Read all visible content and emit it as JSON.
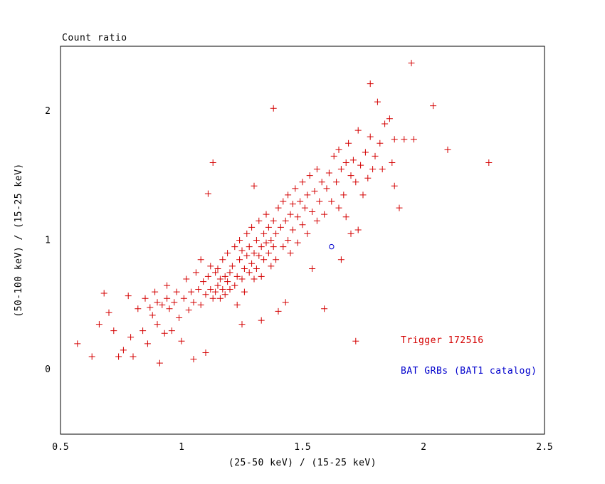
{
  "page": {
    "title": "Count ratio"
  },
  "chart_data": {
    "type": "scatter",
    "title": "Count ratio",
    "xlabel": "(25-50 keV) / (15-25 keV)",
    "ylabel": "(50-100 keV) / (15-25 keV)",
    "xlim": [
      0.5,
      2.5
    ],
    "ylim": [
      -0.5,
      2.5
    ],
    "grid": false,
    "x_ticks": {
      "values": [
        0.5,
        1.0,
        1.5,
        2.0,
        2.5
      ],
      "labels": [
        "0.5",
        "1",
        "1.5",
        "2",
        "2.5"
      ]
    },
    "y_ticks": {
      "values": [
        0,
        1,
        2
      ],
      "labels": [
        "0",
        "1",
        "2"
      ]
    },
    "minor_tick_step": 0.1,
    "legend": [
      {
        "label": "Trigger 172516",
        "color": "#d40000"
      },
      {
        "label": "BAT GRBs (BAT1 catalog)",
        "color": "#0000cd"
      }
    ],
    "series": [
      {
        "name": "Trigger 172516",
        "marker": "plus",
        "color": "#d40000",
        "points": [
          [
            0.57,
            0.2
          ],
          [
            0.63,
            0.1
          ],
          [
            0.66,
            0.35
          ],
          [
            0.68,
            0.59
          ],
          [
            0.7,
            0.44
          ],
          [
            0.72,
            0.3
          ],
          [
            0.74,
            0.1
          ],
          [
            0.76,
            0.15
          ],
          [
            0.78,
            0.57
          ],
          [
            0.79,
            0.25
          ],
          [
            0.8,
            0.1
          ],
          [
            0.82,
            0.47
          ],
          [
            0.84,
            0.3
          ],
          [
            0.85,
            0.55
          ],
          [
            0.86,
            0.2
          ],
          [
            0.87,
            0.48
          ],
          [
            0.88,
            0.42
          ],
          [
            0.89,
            0.6
          ],
          [
            0.9,
            0.35
          ],
          [
            0.9,
            0.52
          ],
          [
            0.91,
            0.05
          ],
          [
            0.92,
            0.5
          ],
          [
            0.93,
            0.28
          ],
          [
            0.94,
            0.55
          ],
          [
            0.94,
            0.65
          ],
          [
            0.95,
            0.47
          ],
          [
            0.96,
            0.3
          ],
          [
            0.97,
            0.52
          ],
          [
            0.98,
            0.6
          ],
          [
            0.99,
            0.4
          ],
          [
            1.0,
            0.22
          ],
          [
            1.01,
            0.55
          ],
          [
            1.02,
            0.7
          ],
          [
            1.03,
            0.46
          ],
          [
            1.04,
            0.6
          ],
          [
            1.05,
            0.08
          ],
          [
            1.05,
            0.52
          ],
          [
            1.06,
            0.75
          ],
          [
            1.07,
            0.62
          ],
          [
            1.08,
            0.5
          ],
          [
            1.08,
            0.85
          ],
          [
            1.09,
            0.68
          ],
          [
            1.1,
            0.13
          ],
          [
            1.1,
            0.58
          ],
          [
            1.11,
            0.72
          ],
          [
            1.11,
            1.36
          ],
          [
            1.12,
            0.62
          ],
          [
            1.12,
            0.8
          ],
          [
            1.13,
            0.55
          ],
          [
            1.13,
            1.6
          ],
          [
            1.14,
            0.75
          ],
          [
            1.14,
            0.6
          ],
          [
            1.15,
            0.65
          ],
          [
            1.15,
            0.78
          ],
          [
            1.16,
            0.7
          ],
          [
            1.16,
            0.55
          ],
          [
            1.17,
            0.62
          ],
          [
            1.17,
            0.85
          ],
          [
            1.18,
            0.72
          ],
          [
            1.18,
            0.58
          ],
          [
            1.19,
            0.68
          ],
          [
            1.19,
            0.9
          ],
          [
            1.2,
            0.75
          ],
          [
            1.2,
            0.62
          ],
          [
            1.21,
            0.8
          ],
          [
            1.22,
            0.65
          ],
          [
            1.22,
            0.95
          ],
          [
            1.23,
            0.72
          ],
          [
            1.23,
            0.5
          ],
          [
            1.24,
            0.85
          ],
          [
            1.24,
            1.0
          ],
          [
            1.25,
            0.35
          ],
          [
            1.25,
            0.7
          ],
          [
            1.25,
            0.92
          ],
          [
            1.26,
            0.78
          ],
          [
            1.26,
            0.6
          ],
          [
            1.27,
            0.88
          ],
          [
            1.27,
            1.05
          ],
          [
            1.28,
            0.75
          ],
          [
            1.28,
            0.95
          ],
          [
            1.29,
            0.82
          ],
          [
            1.29,
            1.1
          ],
          [
            1.3,
            0.7
          ],
          [
            1.3,
            0.9
          ],
          [
            1.3,
            1.42
          ],
          [
            1.31,
            1.0
          ],
          [
            1.31,
            0.78
          ],
          [
            1.32,
            0.88
          ],
          [
            1.32,
            1.15
          ],
          [
            1.33,
            0.38
          ],
          [
            1.33,
            0.95
          ],
          [
            1.33,
            0.72
          ],
          [
            1.34,
            1.05
          ],
          [
            1.34,
            0.85
          ],
          [
            1.35,
            0.98
          ],
          [
            1.35,
            1.2
          ],
          [
            1.36,
            0.9
          ],
          [
            1.36,
            1.1
          ],
          [
            1.37,
            0.8
          ],
          [
            1.37,
            1.0
          ],
          [
            1.38,
            1.15
          ],
          [
            1.38,
            0.95
          ],
          [
            1.38,
            2.02
          ],
          [
            1.39,
            1.05
          ],
          [
            1.39,
            0.85
          ],
          [
            1.4,
            0.45
          ],
          [
            1.4,
            1.25
          ],
          [
            1.41,
            1.1
          ],
          [
            1.42,
            0.95
          ],
          [
            1.42,
            1.3
          ],
          [
            1.43,
            0.52
          ],
          [
            1.43,
            1.15
          ],
          [
            1.44,
            1.0
          ],
          [
            1.44,
            1.35
          ],
          [
            1.45,
            1.2
          ],
          [
            1.45,
            0.9
          ],
          [
            1.46,
            1.28
          ],
          [
            1.46,
            1.08
          ],
          [
            1.47,
            1.4
          ],
          [
            1.48,
            1.18
          ],
          [
            1.48,
            0.98
          ],
          [
            1.49,
            1.3
          ],
          [
            1.5,
            1.12
          ],
          [
            1.5,
            1.45
          ],
          [
            1.51,
            1.25
          ],
          [
            1.52,
            1.05
          ],
          [
            1.52,
            1.35
          ],
          [
            1.53,
            1.5
          ],
          [
            1.54,
            1.22
          ],
          [
            1.54,
            0.78
          ],
          [
            1.55,
            1.38
          ],
          [
            1.56,
            1.15
          ],
          [
            1.56,
            1.55
          ],
          [
            1.57,
            1.3
          ],
          [
            1.58,
            1.45
          ],
          [
            1.59,
            0.47
          ],
          [
            1.59,
            1.2
          ],
          [
            1.6,
            1.4
          ],
          [
            1.61,
            1.52
          ],
          [
            1.62,
            1.3
          ],
          [
            1.63,
            1.65
          ],
          [
            1.64,
            1.45
          ],
          [
            1.65,
            1.25
          ],
          [
            1.65,
            1.7
          ],
          [
            1.66,
            0.85
          ],
          [
            1.66,
            1.55
          ],
          [
            1.67,
            1.35
          ],
          [
            1.68,
            1.18
          ],
          [
            1.68,
            1.6
          ],
          [
            1.69,
            1.75
          ],
          [
            1.7,
            1.05
          ],
          [
            1.7,
            1.5
          ],
          [
            1.71,
            1.62
          ],
          [
            1.72,
            0.22
          ],
          [
            1.72,
            1.45
          ],
          [
            1.73,
            1.08
          ],
          [
            1.73,
            1.85
          ],
          [
            1.74,
            1.58
          ],
          [
            1.75,
            1.35
          ],
          [
            1.76,
            1.68
          ],
          [
            1.77,
            1.48
          ],
          [
            1.78,
            1.8
          ],
          [
            1.78,
            2.21
          ],
          [
            1.79,
            1.55
          ],
          [
            1.8,
            1.65
          ],
          [
            1.81,
            2.07
          ],
          [
            1.82,
            1.75
          ],
          [
            1.83,
            1.55
          ],
          [
            1.84,
            1.9
          ],
          [
            1.86,
            1.94
          ],
          [
            1.87,
            1.6
          ],
          [
            1.88,
            1.42
          ],
          [
            1.88,
            1.78
          ],
          [
            1.9,
            1.25
          ],
          [
            1.92,
            1.78
          ],
          [
            1.95,
            2.37
          ],
          [
            1.96,
            1.78
          ],
          [
            2.04,
            2.04
          ],
          [
            2.1,
            1.7
          ],
          [
            2.27,
            1.6
          ]
        ]
      },
      {
        "name": "BAT GRBs (BAT1 catalog)",
        "marker": "circle-open",
        "color": "#0000cd",
        "points": [
          [
            1.62,
            0.95
          ]
        ]
      }
    ]
  }
}
